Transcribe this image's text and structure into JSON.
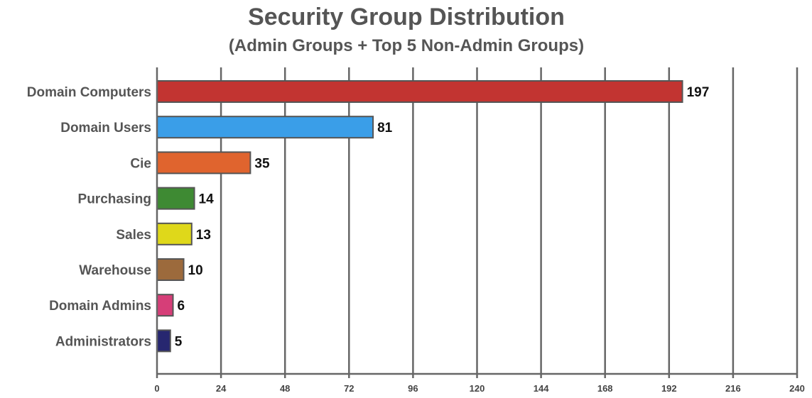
{
  "chart_data": {
    "type": "bar",
    "orientation": "horizontal",
    "title": "Security Group Distribution",
    "subtitle": "(Admin Groups + Top 5 Non-Admin Groups)",
    "xlabel": "",
    "ylabel": "",
    "xlim": [
      0,
      240
    ],
    "x_ticks": [
      0,
      24,
      48,
      72,
      96,
      120,
      144,
      168,
      192,
      216,
      240
    ],
    "grid": "vertical",
    "legend": "none",
    "categories": [
      "Domain Computers",
      "Domain Users",
      "Cie",
      "Purchasing",
      "Sales",
      "Warehouse",
      "Domain Admins",
      "Administrators"
    ],
    "values": [
      197,
      81,
      35,
      14,
      13,
      10,
      6,
      5
    ],
    "colors": [
      "#c23431",
      "#3a9ee8",
      "#e0642e",
      "#3e8a33",
      "#dfd81a",
      "#9c6a3c",
      "#d63e78",
      "#272770"
    ]
  }
}
